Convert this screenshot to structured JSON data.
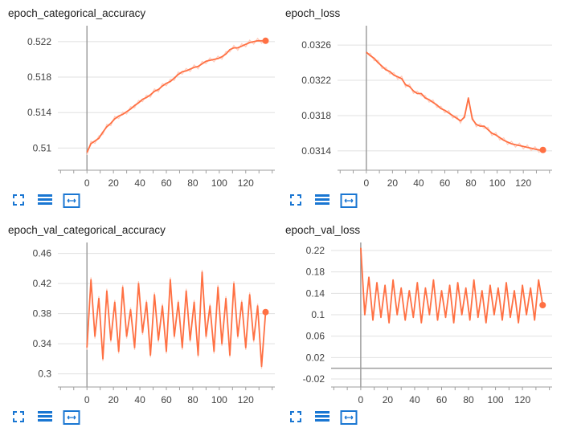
{
  "colors": {
    "accent": "#ff7043",
    "accent_light": "#ffccbc",
    "icon": "#1976d2",
    "axis": "#9e9e9e",
    "grid": "#e0e0e0"
  },
  "toolbar_icons": [
    "expand-icon",
    "list-lines-icon",
    "fit-domain-icon"
  ],
  "chart_data": [
    {
      "type": "line",
      "title": "epoch_categorical_accuracy",
      "xlabel": "",
      "ylabel": "",
      "xlim": [
        -22,
        142
      ],
      "ylim": [
        0.5075,
        0.5238
      ],
      "xticks": [
        "0",
        "20",
        "40",
        "60",
        "80",
        "100",
        "120"
      ],
      "yticks": [
        "0.51",
        "0.514",
        "0.518",
        "0.522"
      ],
      "series": [
        {
          "x": [
            0,
            3,
            6,
            9,
            12,
            15,
            18,
            21,
            24,
            27,
            30,
            33,
            36,
            39,
            42,
            45,
            48,
            51,
            54,
            57,
            60,
            63,
            66,
            69,
            72,
            75,
            78,
            81,
            84,
            87,
            90,
            93,
            96,
            99,
            102,
            105,
            108,
            111,
            114,
            117,
            120,
            123,
            126,
            129,
            132,
            135
          ],
          "y": [
            0.5095,
            0.5105,
            0.5108,
            0.5111,
            0.5118,
            0.5124,
            0.5128,
            0.5133,
            0.5136,
            0.5138,
            0.5141,
            0.5144,
            0.5148,
            0.5151,
            0.5155,
            0.5157,
            0.516,
            0.5164,
            0.5166,
            0.517,
            0.5173,
            0.5175,
            0.5179,
            0.5183,
            0.5186,
            0.5187,
            0.5189,
            0.5191,
            0.5192,
            0.5195,
            0.5198,
            0.5199,
            0.52,
            0.5201,
            0.5203,
            0.5206,
            0.5211,
            0.5213,
            0.5213,
            0.5215,
            0.5217,
            0.5219,
            0.522,
            0.5221,
            0.5221,
            0.5221
          ]
        }
      ]
    },
    {
      "type": "line",
      "title": "epoch_loss",
      "xlabel": "",
      "ylabel": "",
      "xlim": [
        -22,
        142
      ],
      "ylim": [
        0.03118,
        0.03282
      ],
      "xticks": [
        "0",
        "20",
        "40",
        "60",
        "80",
        "100",
        "120"
      ],
      "yticks": [
        "0.0314",
        "0.0318",
        "0.0322",
        "0.0326"
      ],
      "series": [
        {
          "x": [
            0,
            3,
            6,
            9,
            12,
            15,
            18,
            21,
            24,
            27,
            30,
            33,
            36,
            39,
            42,
            45,
            48,
            51,
            54,
            57,
            60,
            63,
            66,
            69,
            72,
            75,
            78,
            81,
            84,
            87,
            90,
            93,
            96,
            99,
            102,
            105,
            108,
            111,
            114,
            117,
            120,
            123,
            126,
            129,
            132,
            135
          ],
          "y": [
            0.03252,
            0.03248,
            0.03245,
            0.0324,
            0.03236,
            0.03232,
            0.0323,
            0.03226,
            0.03224,
            0.03222,
            0.03215,
            0.03213,
            0.03208,
            0.03205,
            0.03205,
            0.032,
            0.03198,
            0.03195,
            0.03192,
            0.03188,
            0.03186,
            0.03183,
            0.0318,
            0.03177,
            0.03174,
            0.03178,
            0.032,
            0.03176,
            0.0317,
            0.03168,
            0.03168,
            0.03164,
            0.0316,
            0.03158,
            0.03155,
            0.03152,
            0.0315,
            0.03148,
            0.03147,
            0.03146,
            0.03145,
            0.03144,
            0.03143,
            0.03142,
            0.03141,
            0.03141
          ]
        }
      ]
    },
    {
      "type": "line",
      "title": "epoch_val_categorical_accuracy",
      "xlabel": "",
      "ylabel": "",
      "xlim": [
        -22,
        142
      ],
      "ylim": [
        0.2825,
        0.4745
      ],
      "xticks": [
        "0",
        "20",
        "40",
        "60",
        "80",
        "100",
        "120"
      ],
      "yticks": [
        "0.3",
        "0.34",
        "0.38",
        "0.42",
        "0.46"
      ],
      "series": [
        {
          "x": [
            0,
            3,
            6,
            9,
            12,
            15,
            18,
            21,
            24,
            27,
            30,
            33,
            36,
            39,
            42,
            45,
            48,
            51,
            54,
            57,
            60,
            63,
            66,
            69,
            72,
            75,
            78,
            81,
            84,
            87,
            90,
            93,
            96,
            99,
            102,
            105,
            108,
            111,
            114,
            117,
            120,
            123,
            126,
            129,
            132,
            135
          ],
          "y": [
            0.335,
            0.425,
            0.35,
            0.4,
            0.32,
            0.41,
            0.345,
            0.395,
            0.33,
            0.415,
            0.35,
            0.385,
            0.335,
            0.42,
            0.355,
            0.395,
            0.325,
            0.405,
            0.345,
            0.39,
            0.33,
            0.425,
            0.35,
            0.395,
            0.335,
            0.41,
            0.345,
            0.395,
            0.325,
            0.435,
            0.35,
            0.39,
            0.33,
            0.415,
            0.34,
            0.4,
            0.325,
            0.42,
            0.35,
            0.395,
            0.335,
            0.405,
            0.345,
            0.39,
            0.31,
            0.382
          ]
        }
      ]
    },
    {
      "type": "line",
      "title": "epoch_val_loss",
      "xlabel": "",
      "ylabel": "",
      "xlim": [
        -22,
        142
      ],
      "ylim": [
        -0.035,
        0.235
      ],
      "xticks": [
        "0",
        "20",
        "40",
        "60",
        "80",
        "100",
        "120"
      ],
      "yticks": [
        "-0.02",
        "0.02",
        "0.06",
        "0.1",
        "0.14",
        "0.18",
        "0.22"
      ],
      "series": [
        {
          "x": [
            0,
            3,
            6,
            9,
            12,
            15,
            18,
            21,
            24,
            27,
            30,
            33,
            36,
            39,
            42,
            45,
            48,
            51,
            54,
            57,
            60,
            63,
            66,
            69,
            72,
            75,
            78,
            81,
            84,
            87,
            90,
            93,
            96,
            99,
            102,
            105,
            108,
            111,
            114,
            117,
            120,
            123,
            126,
            129,
            132,
            135
          ],
          "y": [
            0.225,
            0.1,
            0.17,
            0.09,
            0.16,
            0.095,
            0.155,
            0.085,
            0.165,
            0.1,
            0.15,
            0.09,
            0.145,
            0.095,
            0.16,
            0.085,
            0.15,
            0.1,
            0.165,
            0.09,
            0.145,
            0.095,
            0.155,
            0.085,
            0.16,
            0.1,
            0.15,
            0.09,
            0.165,
            0.095,
            0.145,
            0.085,
            0.155,
            0.1,
            0.15,
            0.09,
            0.16,
            0.095,
            0.145,
            0.085,
            0.155,
            0.1,
            0.15,
            0.09,
            0.165,
            0.118
          ]
        }
      ]
    }
  ]
}
